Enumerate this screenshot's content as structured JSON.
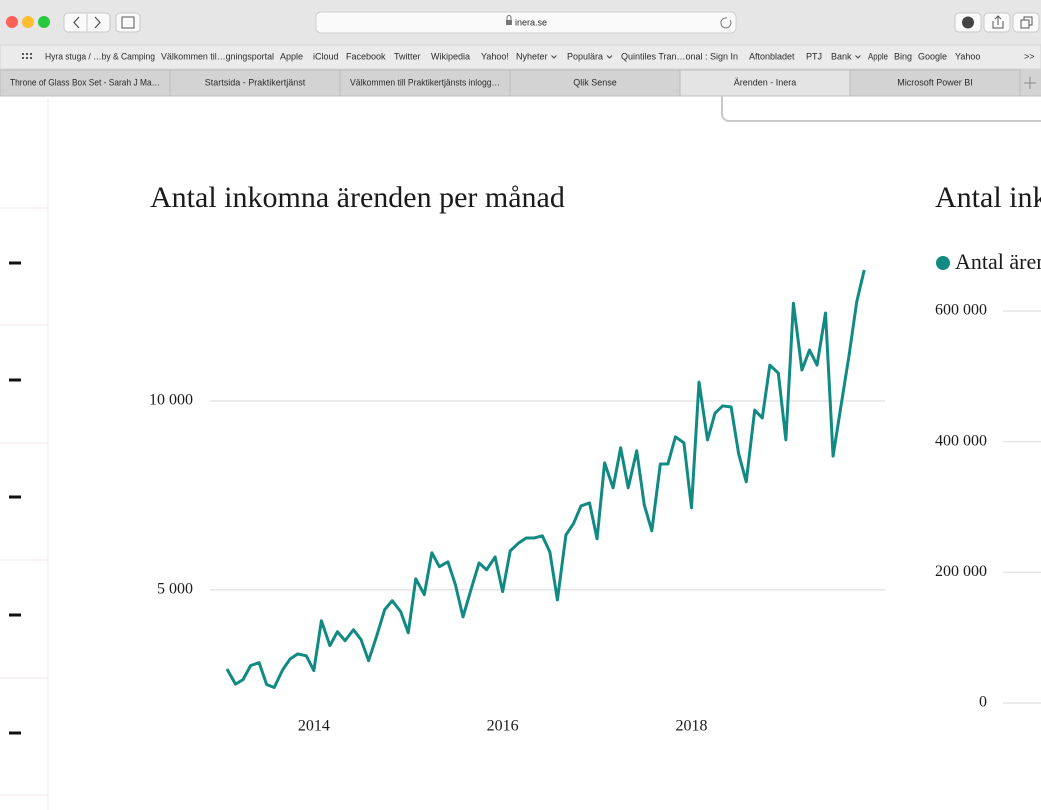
{
  "browser": {
    "url": "inera.se",
    "bookmarks": [
      "Hyra stuga / …by & Camping",
      "Välkommen til…gningsportal",
      "Apple",
      "iCloud",
      "Facebook",
      "Twitter",
      "Wikipedia",
      "Yahoo!",
      "Nyheter",
      "Populära",
      "Quintiles Tran…onal : Sign In",
      "Aftonbladet",
      "PTJ",
      "Bank",
      "Apple",
      "Bing",
      "Google",
      "Yahoo"
    ],
    "more": ">>",
    "tabs": [
      "Throne of Glass Box Set - Sarah J Ma…",
      "Startsida - Praktikertjänst",
      "Välkommen till Praktikertjänsts inlogg…",
      "Qlik Sense",
      "Ärenden - Inera",
      "Microsoft Power BI"
    ]
  },
  "chart_data": [
    {
      "type": "line",
      "title": "Antal inkomna ärenden per månad",
      "x": [
        2013.08,
        2013.17,
        2013.25,
        2013.33,
        2013.42,
        2013.5,
        2013.58,
        2013.67,
        2013.75,
        2013.83,
        2013.92,
        2014.0,
        2014.08,
        2014.17,
        2014.25,
        2014.33,
        2014.42,
        2014.5,
        2014.58,
        2014.67,
        2014.75,
        2014.83,
        2014.92,
        2015.0,
        2015.08,
        2015.17,
        2015.25,
        2015.33,
        2015.42,
        2015.5,
        2015.58,
        2015.67,
        2015.75,
        2015.83,
        2015.92,
        2016.0,
        2016.08,
        2016.17,
        2016.25,
        2016.33,
        2016.42,
        2016.5,
        2016.58,
        2016.67,
        2016.75,
        2016.83,
        2016.92,
        2017.0,
        2017.08,
        2017.17,
        2017.25,
        2017.33,
        2017.42,
        2017.5,
        2017.58,
        2017.67,
        2017.75,
        2017.83,
        2017.92,
        2018.0,
        2018.08,
        2018.17,
        2018.25,
        2018.33,
        2018.42,
        2018.5,
        2018.58,
        2018.67,
        2018.75,
        2018.83,
        2018.92,
        2019.0,
        2019.08,
        2019.17,
        2019.25,
        2019.33,
        2019.42,
        2019.5,
        2019.58,
        2019.67,
        2019.75,
        2019.83
      ],
      "values": [
        2900,
        2500,
        2620,
        2990,
        3070,
        2490,
        2410,
        2880,
        3170,
        3300,
        3250,
        2860,
        4180,
        3520,
        3890,
        3650,
        3940,
        3680,
        3120,
        3810,
        4470,
        4710,
        4420,
        3860,
        5290,
        4870,
        5980,
        5610,
        5740,
        5130,
        4280,
        5050,
        5710,
        5530,
        5870,
        4950,
        6030,
        6240,
        6370,
        6370,
        6430,
        6000,
        4730,
        6450,
        6750,
        7220,
        7300,
        6350,
        8360,
        7700,
        8760,
        7700,
        8680,
        7250,
        6560,
        8330,
        8330,
        9050,
        8890,
        7170,
        10500,
        8970,
        9680,
        9870,
        9840,
        8600,
        7860,
        9760,
        9550,
        10950,
        10740,
        8970,
        12590,
        10820,
        11350,
        10950,
        12330,
        8540,
        9810,
        11220,
        12620,
        13470
      ],
      "color": "#118a84",
      "xlim": [
        2012.9,
        2020.05
      ],
      "xticks": [
        2014,
        2016,
        2018
      ],
      "ylim": [
        2000,
        14000
      ],
      "yticks": [
        {
          "value": 5000,
          "label": "5 000"
        },
        {
          "value": 10000,
          "label": "10 000"
        }
      ],
      "grid": true
    },
    {
      "type": "bar",
      "title": "Antal ink",
      "series": [
        {
          "name": "Antal ären",
          "color": "#118a84"
        }
      ],
      "ylim": [
        0,
        600000
      ],
      "yticks": [
        0,
        {
          "value": 200000,
          "label": "200 000"
        },
        {
          "value": 400000,
          "label": "400 000"
        },
        {
          "value": 600000,
          "label": "600 000"
        }
      ],
      "grid": true
    }
  ]
}
